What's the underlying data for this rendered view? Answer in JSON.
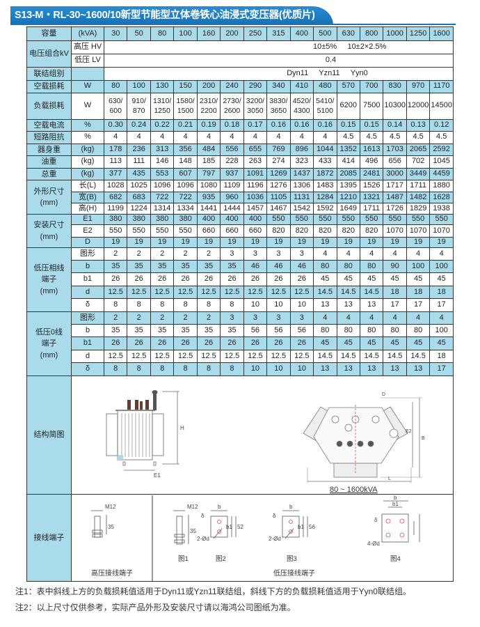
{
  "title": "S13-M・RL-30~1600/10新型节能型立体卷铁心油浸式变压器(优质片)",
  "header": {
    "label": "容量",
    "unit": "(kVA)",
    "capacities": [
      "30",
      "50",
      "80",
      "100",
      "160",
      "200",
      "250",
      "315",
      "400",
      "500",
      "630",
      "800",
      "1000",
      "1250",
      "1600"
    ]
  },
  "voltage": {
    "label": "电压组合kV",
    "hv_label": "高压 HV",
    "hv_value": "10±5%     10±2×2.5%",
    "lv_label": "低压 LV",
    "lv_value": "0.4"
  },
  "connection": {
    "label": "联结组别",
    "value": "Dyn11     Yzn11     Yyn0"
  },
  "rows": [
    {
      "group": "空载损耗",
      "sub": [
        {
          "unit": "W",
          "values": [
            "80",
            "100",
            "130",
            "150",
            "200",
            "240",
            "290",
            "340",
            "410",
            "480",
            "570",
            "700",
            "830",
            "970",
            "1170"
          ]
        }
      ]
    },
    {
      "group": "负载损耗",
      "sub": [
        {
          "unit": "W",
          "values": [
            "630/600",
            "910/870",
            "1310/1250",
            "1580/1500",
            "2310/2200",
            "2730/2600",
            "3200/3050",
            "3830/3650",
            "4520/4300",
            "5410/5100",
            "6200",
            "7500",
            "10300",
            "12000",
            "14500"
          ]
        }
      ]
    },
    {
      "group": "空载电流",
      "sub": [
        {
          "unit": "%",
          "values": [
            "0.30",
            "0.24",
            "0.22",
            "0.21",
            "0.19",
            "0.18",
            "0.17",
            "0.16",
            "0.16",
            "0.16",
            "0.15",
            "0.15",
            "0.14",
            "0.13",
            "0.12"
          ]
        }
      ]
    },
    {
      "group": "短路阻抗",
      "sub": [
        {
          "unit": "%",
          "values": [
            "4",
            "4",
            "4",
            "4",
            "4",
            "4",
            "4",
            "4",
            "4",
            "4",
            "4.5",
            "4.5",
            "4.5",
            "4.5",
            "4.5"
          ]
        }
      ]
    },
    {
      "group": "器身重",
      "sub": [
        {
          "unit": "(kg)",
          "values": [
            "178",
            "236",
            "313",
            "356",
            "484",
            "556",
            "655",
            "769",
            "896",
            "1044",
            "1352",
            "1613",
            "1703",
            "2065",
            "2592"
          ]
        }
      ]
    },
    {
      "group": "油重",
      "sub": [
        {
          "unit": "(kg)",
          "values": [
            "113",
            "111",
            "146",
            "148",
            "185",
            "228",
            "263",
            "274",
            "323",
            "433",
            "414",
            "496",
            "656",
            "702",
            "1045"
          ]
        }
      ]
    },
    {
      "group": "总重",
      "sub": [
        {
          "unit": "(kg)",
          "values": [
            "377",
            "435",
            "553",
            "607",
            "797",
            "937",
            "1091",
            "1269",
            "1437",
            "1872",
            "2085",
            "2481",
            "3000",
            "3449",
            "4459"
          ]
        }
      ]
    },
    {
      "group": "外形尺寸\n(mm)",
      "sub": [
        {
          "unit": "长(L)",
          "values": [
            "1028",
            "1025",
            "1096",
            "1096",
            "1080",
            "1109",
            "1196",
            "1276",
            "1306",
            "1483",
            "1395",
            "1526",
            "1717",
            "1711",
            "1880"
          ]
        },
        {
          "unit": "宽(B)",
          "values": [
            "682",
            "683",
            "722",
            "722",
            "935",
            "960",
            "1036",
            "1105",
            "1131",
            "1284",
            "1210",
            "1321",
            "1487",
            "1482",
            "1628"
          ]
        },
        {
          "unit": "高(H)",
          "values": [
            "1199",
            "1224",
            "1314",
            "1334",
            "1441",
            "1444",
            "1457",
            "1467",
            "1542",
            "1592",
            "1649",
            "1711",
            "1726",
            "1829",
            "1938"
          ]
        }
      ]
    },
    {
      "group": "安装尺寸\n(mm)",
      "sub": [
        {
          "unit": "E1",
          "values": [
            "380",
            "380",
            "380",
            "380",
            "400",
            "400",
            "400",
            "550",
            "550",
            "550",
            "550",
            "550",
            "550",
            "550",
            "550"
          ]
        },
        {
          "unit": "E2",
          "values": [
            "550",
            "550",
            "550",
            "550",
            "660",
            "660",
            "660",
            "820",
            "820",
            "820",
            "820",
            "820",
            "1070",
            "1070",
            "1070"
          ]
        },
        {
          "unit": "D",
          "values": [
            "19",
            "19",
            "19",
            "19",
            "19",
            "19",
            "19",
            "19",
            "19",
            "19",
            "19",
            "19",
            "19",
            "19",
            "19"
          ]
        }
      ]
    },
    {
      "group": "低压相线\n端子\n(mm)",
      "sub": [
        {
          "unit": "图形",
          "values": [
            "2",
            "2",
            "2",
            "2",
            "2",
            "3",
            "3",
            "3",
            "3",
            "4",
            "4",
            "4",
            "4",
            "4",
            "4"
          ]
        },
        {
          "unit": "b",
          "values": [
            "35",
            "35",
            "35",
            "35",
            "35",
            "35",
            "46",
            "46",
            "46",
            "80",
            "80",
            "80",
            "90",
            "100",
            "100"
          ]
        },
        {
          "unit": "b1",
          "values": [
            "26",
            "26",
            "26",
            "26",
            "26",
            "26",
            "26",
            "26",
            "26",
            "45",
            "45",
            "45",
            "45",
            "45",
            "45"
          ]
        },
        {
          "unit": "d",
          "values": [
            "12.5",
            "12.5",
            "12.5",
            "12.5",
            "12.5",
            "12.5",
            "12.5",
            "12.5",
            "12.5",
            "14.5",
            "14.5",
            "14.5",
            "18",
            "18",
            "18"
          ]
        },
        {
          "unit": "δ",
          "values": [
            "8",
            "8",
            "8",
            "8",
            "8",
            "8",
            "10",
            "10",
            "10",
            "13",
            "13",
            "13",
            "17",
            "17",
            "17"
          ]
        }
      ]
    },
    {
      "group": "低压0线\n端子\n(mm)",
      "sub": [
        {
          "unit": "图形",
          "values": [
            "2",
            "2",
            "2",
            "2",
            "2",
            "3",
            "3",
            "3",
            "3",
            "4",
            "4",
            "4",
            "4",
            "4",
            "4"
          ]
        },
        {
          "unit": "b",
          "values": [
            "35",
            "35",
            "35",
            "35",
            "35",
            "35",
            "56",
            "56",
            "56",
            "80",
            "80",
            "80",
            "80",
            "80",
            "100"
          ]
        },
        {
          "unit": "b1",
          "values": [
            "26",
            "26",
            "26",
            "26",
            "26",
            "26",
            "26",
            "26",
            "26",
            "45",
            "45",
            "45",
            "45",
            "45",
            "45"
          ]
        },
        {
          "unit": "d",
          "values": [
            "12.5",
            "12.5",
            "12.5",
            "12.5",
            "12.5",
            "12.5",
            "12.5",
            "12.5",
            "12.5",
            "14.5",
            "14.5",
            "14.5",
            "14.5",
            "14.5",
            "18"
          ]
        },
        {
          "unit": "δ",
          "values": [
            "8",
            "8",
            "8",
            "8",
            "8",
            "8",
            "10",
            "10",
            "10",
            "13",
            "13",
            "13",
            "13",
            "13",
            "17"
          ]
        }
      ]
    }
  ],
  "structure": {
    "label": "结构简图",
    "caption": "80 ~ 1600kVA",
    "dims": [
      "H",
      "E1",
      "L",
      "B",
      "E2",
      "D"
    ]
  },
  "terminals": {
    "label": "接线端子",
    "hv_caption": "高压接线端子",
    "lv_caption": "低压接线端子",
    "figures": [
      "图1",
      "图2",
      "图3",
      "图4"
    ],
    "dim_labels": {
      "m12": "M12",
      "h35": "35",
      "h52": "52",
      "h56": "56",
      "b": "b",
      "b1": "b1",
      "delta": "δ",
      "d2": "2-Ød",
      "d4": "4-Ød"
    }
  },
  "notes": [
    "注1：表中斜线上方的负载损耗值适用于Dyn11或Yzn11联结组，斜线下方的负载损耗值适用于Yyn0联结组。",
    "注2：以上尺寸仅供参考，实际产品外形及安装尺寸请以海鸿公司图纸为准。"
  ],
  "colors": {
    "title_blue": "#1a72b8",
    "cell_blue": "#a9dbea",
    "border": "#333333"
  }
}
